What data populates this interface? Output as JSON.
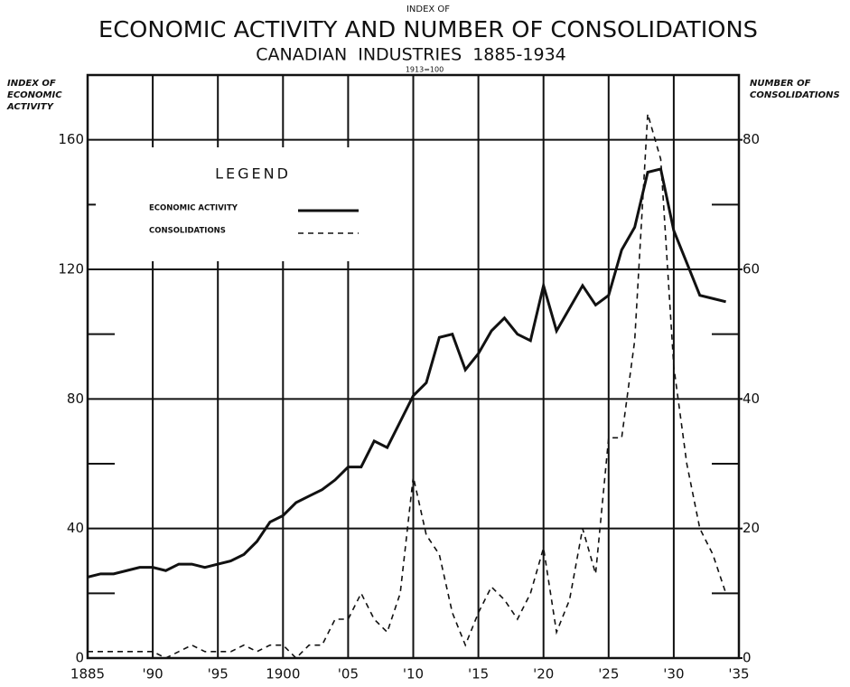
{
  "chart_data": {
    "type": "line",
    "supertitle": "INDEX OF",
    "title": "ECONOMIC ACTIVITY AND NUMBER OF CONSOLIDATIONS",
    "subtitle": "CANADIAN  INDUSTRIES  1885-1934",
    "note": "1913=100",
    "y_label": [
      "INDEX OF",
      "ECONOMIC",
      "ACTIVITY"
    ],
    "y2_label": [
      "NUMBER OF",
      "CONSOLIDATIONS"
    ],
    "legend_title": "LEGEND",
    "legend": "upper left",
    "x": [
      1885,
      1886,
      1887,
      1888,
      1889,
      1890,
      1891,
      1892,
      1893,
      1894,
      1895,
      1896,
      1897,
      1898,
      1899,
      1900,
      1901,
      1902,
      1903,
      1904,
      1905,
      1906,
      1907,
      1908,
      1909,
      1910,
      1911,
      1912,
      1913,
      1914,
      1915,
      1916,
      1917,
      1918,
      1919,
      1920,
      1921,
      1922,
      1923,
      1924,
      1925,
      1926,
      1927,
      1928,
      1929,
      1930,
      1931,
      1932,
      1933,
      1934
    ],
    "series": [
      {
        "name": "ECONOMIC ACTIVITY",
        "color": "#111111",
        "dash": "none",
        "axis": "y",
        "values": [
          25,
          26,
          26,
          27,
          28,
          28,
          27,
          29,
          29,
          28,
          29,
          30,
          32,
          36,
          42,
          44,
          48,
          50,
          52,
          55,
          59,
          59,
          67,
          65,
          73,
          81,
          85,
          99,
          100,
          89,
          94,
          101,
          105,
          100,
          98,
          115,
          101,
          108,
          115,
          109,
          112,
          126,
          133,
          150,
          151,
          132,
          122,
          112,
          111,
          110
        ]
      },
      {
        "name": "CONSOLIDATIONS",
        "color": "#111111",
        "dash": "6 5",
        "axis": "y2",
        "values": [
          1,
          1,
          1,
          1,
          1,
          1,
          0,
          1,
          2,
          1,
          1,
          1,
          2,
          1,
          2,
          2,
          0,
          2,
          2,
          6,
          6,
          10,
          6,
          4,
          10,
          28,
          19,
          16,
          7,
          2,
          7,
          11,
          9,
          6,
          10,
          17,
          4,
          9,
          20,
          13,
          34,
          34,
          49,
          84,
          77,
          45,
          30,
          20,
          16,
          10
        ]
      }
    ],
    "xlim": [
      1885,
      1935
    ],
    "xticks": [
      1885,
      {
        "value": 1890,
        "label": "'90"
      },
      {
        "value": 1895,
        "label": "'95"
      },
      1900,
      {
        "value": 1905,
        "label": "'05"
      },
      {
        "value": 1910,
        "label": "'10"
      },
      {
        "value": 1915,
        "label": "'15"
      },
      {
        "value": 1920,
        "label": "'20"
      },
      {
        "value": 1925,
        "label": "'25"
      },
      {
        "value": 1930,
        "label": "'30"
      },
      {
        "value": 1935,
        "label": "'35"
      }
    ],
    "ylim": [
      0,
      180
    ],
    "yticks": [
      0,
      40,
      80,
      120,
      160
    ],
    "y_minor_ticks": [
      20,
      60,
      100,
      140
    ],
    "y2lim": [
      0,
      90
    ],
    "y2ticks": [
      0,
      20,
      40,
      60,
      80
    ],
    "grid": true
  }
}
